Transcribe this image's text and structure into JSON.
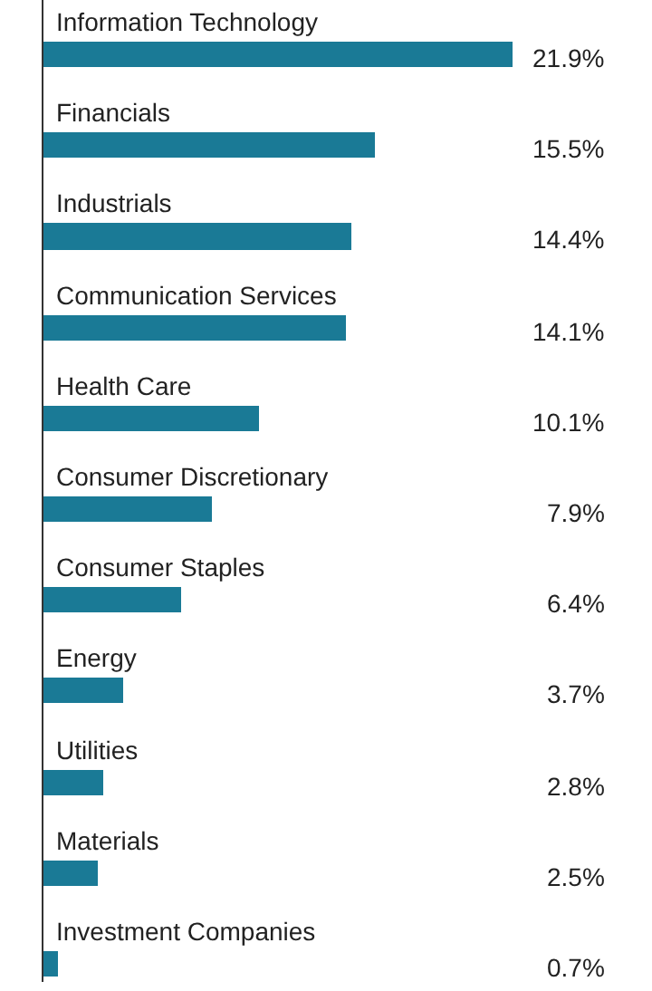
{
  "chart_data": {
    "type": "bar",
    "orientation": "horizontal",
    "categories": [
      "Information Technology",
      "Financials",
      "Industrials",
      "Communication Services",
      "Health Care",
      "Consumer Discretionary",
      "Consumer Staples",
      "Energy",
      "Utilities",
      "Materials",
      "Investment Companies"
    ],
    "values": [
      21.9,
      15.5,
      14.4,
      14.1,
      10.1,
      7.9,
      6.4,
      3.7,
      2.8,
      2.5,
      0.7
    ],
    "value_labels": [
      "21.9%",
      "15.5%",
      "14.4%",
      "14.1%",
      "10.1%",
      "7.9%",
      "6.4%",
      "3.7%",
      "2.8%",
      "2.5%",
      "0.7%"
    ],
    "color": "#1a7a96",
    "grid": false,
    "legend": false
  }
}
